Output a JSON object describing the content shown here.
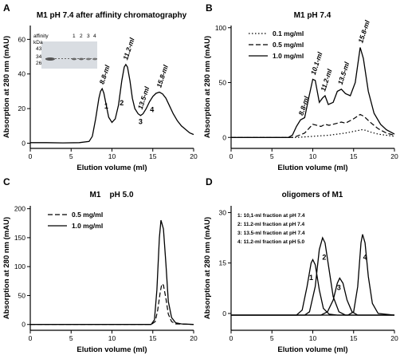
{
  "chart_data": [
    {
      "panel": "A",
      "type": "line",
      "title": "M1 pH 7.4 after affinity chromatography",
      "xlabel": "Elution volume (ml)",
      "ylabel": "Absorption at 280 nm (mAU)",
      "xlim": [
        0,
        20
      ],
      "ylim": [
        -3,
        68
      ],
      "xticks": [
        0,
        5,
        10,
        15,
        20
      ],
      "yticks": [
        0,
        20,
        40,
        60
      ],
      "series": [
        {
          "style": "solid",
          "points": [
            [
              0,
              0.3
            ],
            [
              2,
              0.3
            ],
            [
              4,
              0.2
            ],
            [
              6,
              0.3
            ],
            [
              7.2,
              1
            ],
            [
              7.6,
              4
            ],
            [
              8,
              14
            ],
            [
              8.4,
              26
            ],
            [
              8.6,
              30
            ],
            [
              8.8,
              31.5
            ],
            [
              9,
              29
            ],
            [
              9.3,
              22
            ],
            [
              9.6,
              15
            ],
            [
              10,
              12
            ],
            [
              10.4,
              14
            ],
            [
              10.8,
              22
            ],
            [
              11.2,
              36
            ],
            [
              11.5,
              44
            ],
            [
              11.7,
              45.5
            ],
            [
              11.9,
              44
            ],
            [
              12.2,
              36
            ],
            [
              12.5,
              26
            ],
            [
              12.8,
              20
            ],
            [
              13.2,
              17
            ],
            [
              13.5,
              16
            ],
            [
              13.8,
              17
            ],
            [
              14.2,
              20
            ],
            [
              14.6,
              24
            ],
            [
              15,
              27
            ],
            [
              15.4,
              28.8
            ],
            [
              15.8,
              29.5
            ],
            [
              16.2,
              28.5
            ],
            [
              16.6,
              26
            ],
            [
              17,
              22
            ],
            [
              17.5,
              17
            ],
            [
              18,
              13
            ],
            [
              18.5,
              10
            ],
            [
              19,
              8
            ],
            [
              19.5,
              6
            ],
            [
              20,
              5
            ]
          ]
        }
      ],
      "peak_labels": [
        {
          "label": "8.8-ml",
          "x": 8.8
        },
        {
          "label": "11.2-ml",
          "x": 11.7
        },
        {
          "label": "13.5-ml",
          "x": 13.5
        },
        {
          "label": "15.8-ml",
          "x": 15.8
        }
      ],
      "peak_numbers": [
        {
          "label": "1",
          "x": 9.3,
          "y": 20
        },
        {
          "label": "2",
          "x": 11.2,
          "y": 22
        },
        {
          "label": "3",
          "x": 13.5,
          "y": 11
        },
        {
          "label": "4",
          "x": 14.9,
          "y": 18
        }
      ],
      "inset": {
        "header": [
          "affinity",
          "1",
          "2",
          "3",
          "4"
        ],
        "unit": "kDa",
        "markers": [
          "43",
          "34",
          "26"
        ]
      }
    },
    {
      "panel": "B",
      "type": "line",
      "title": "M1   pH 7.4",
      "xlabel": "Elution volume (ml)",
      "ylabel": "Absorption at 280 nm (mAU)",
      "xlim": [
        0,
        20
      ],
      "ylim": [
        -10,
        102
      ],
      "xticks": [
        0,
        5,
        10,
        15,
        20
      ],
      "yticks": [
        0,
        50,
        100
      ],
      "legend_position": "top-left",
      "series": [
        {
          "name": "0.1 mg/ml",
          "style": "dotted",
          "points": [
            [
              0,
              0
            ],
            [
              8,
              0
            ],
            [
              9,
              0.5
            ],
            [
              10,
              1
            ],
            [
              11,
              1.5
            ],
            [
              12,
              2
            ],
            [
              13,
              3
            ],
            [
              14,
              4
            ],
            [
              15,
              5.5
            ],
            [
              16,
              7
            ],
            [
              16.5,
              6.5
            ],
            [
              17,
              5
            ],
            [
              18,
              3
            ],
            [
              19,
              2
            ],
            [
              20,
              1
            ]
          ]
        },
        {
          "name": "0.5 mg/ml",
          "style": "dashed",
          "points": [
            [
              0,
              0
            ],
            [
              7.5,
              0
            ],
            [
              8,
              1
            ],
            [
              9,
              4
            ],
            [
              10,
              12
            ],
            [
              10.5,
              11
            ],
            [
              11,
              10
            ],
            [
              11.5,
              12
            ],
            [
              12,
              11
            ],
            [
              13,
              13
            ],
            [
              13.5,
              14
            ],
            [
              14,
              13
            ],
            [
              15,
              17
            ],
            [
              15.8,
              21
            ],
            [
              16.3,
              19
            ],
            [
              17,
              14
            ],
            [
              18,
              8
            ],
            [
              19,
              4
            ],
            [
              20,
              2
            ]
          ]
        },
        {
          "name": "1.0 mg/ml",
          "style": "solid",
          "points": [
            [
              0,
              0
            ],
            [
              7,
              0
            ],
            [
              7.5,
              2
            ],
            [
              8,
              10
            ],
            [
              8.5,
              16
            ],
            [
              9,
              18
            ],
            [
              9.5,
              36
            ],
            [
              10,
              53
            ],
            [
              10.3,
              52
            ],
            [
              10.8,
              32
            ],
            [
              11.2,
              36
            ],
            [
              11.5,
              38
            ],
            [
              11.9,
              30
            ],
            [
              12.5,
              32
            ],
            [
              13,
              42
            ],
            [
              13.5,
              44
            ],
            [
              14,
              40
            ],
            [
              14.6,
              38
            ],
            [
              15.2,
              50
            ],
            [
              15.8,
              82
            ],
            [
              16.2,
              72
            ],
            [
              16.8,
              42
            ],
            [
              17.5,
              22
            ],
            [
              18.3,
              12
            ],
            [
              19,
              7
            ],
            [
              20,
              3
            ]
          ]
        }
      ],
      "peak_labels": [
        {
          "label": "8.8-ml",
          "x": 8.6
        },
        {
          "label": "10.1-ml",
          "x": 10.1
        },
        {
          "label": "11.2-ml",
          "x": 11.3
        },
        {
          "label": "13.5-ml",
          "x": 13.4
        },
        {
          "label": "15.8-ml",
          "x": 15.9
        }
      ]
    },
    {
      "panel": "C",
      "type": "line",
      "title": "M1    pH 5.0",
      "xlabel": "Elution volume (ml)",
      "ylabel": "Absorption at 280 nm (mAU)",
      "xlim": [
        0,
        20
      ],
      "ylim": [
        -10,
        205
      ],
      "xticks": [
        0,
        5,
        10,
        15,
        20
      ],
      "yticks": [
        0,
        50,
        100,
        150,
        200
      ],
      "legend_position": "top-left",
      "series": [
        {
          "name": "0.5 mg/ml",
          "style": "dashed",
          "points": [
            [
              0,
              0
            ],
            [
              14.8,
              0
            ],
            [
              15.3,
              5
            ],
            [
              15.6,
              25
            ],
            [
              15.9,
              55
            ],
            [
              16.1,
              70
            ],
            [
              16.3,
              68
            ],
            [
              16.6,
              45
            ],
            [
              16.9,
              18
            ],
            [
              17.3,
              5
            ],
            [
              17.8,
              1
            ],
            [
              20,
              0
            ]
          ]
        },
        {
          "name": "1.0 mg/ml",
          "style": "solid",
          "points": [
            [
              0,
              0
            ],
            [
              14.8,
              0
            ],
            [
              15.2,
              8
            ],
            [
              15.5,
              60
            ],
            [
              15.8,
              150
            ],
            [
              16,
              180
            ],
            [
              16.3,
              165
            ],
            [
              16.6,
              105
            ],
            [
              16.9,
              40
            ],
            [
              17.3,
              12
            ],
            [
              17.8,
              3
            ],
            [
              18.5,
              1
            ],
            [
              20,
              0
            ]
          ]
        }
      ]
    },
    {
      "panel": "D",
      "type": "line",
      "title": "oligomers of M1",
      "xlabel": "Elution volume (ml)",
      "ylabel": "Absorption at 280 nm (mAU)",
      "xlim": [
        0,
        20
      ],
      "ylim": [
        -5,
        32
      ],
      "xticks": [
        0,
        5,
        10,
        15,
        20
      ],
      "yticks": [
        0,
        15,
        30
      ],
      "legend_position": "top-left",
      "series": [
        {
          "name": "1: 10,1-ml fraction at pH 7.4",
          "style": "solid",
          "points": [
            [
              0,
              -0.5
            ],
            [
              8,
              -0.5
            ],
            [
              8.7,
              1
            ],
            [
              9.3,
              8
            ],
            [
              9.8,
              15
            ],
            [
              10,
              16
            ],
            [
              10.3,
              14.5
            ],
            [
              10.8,
              7
            ],
            [
              11.3,
              1.5
            ],
            [
              12,
              -0.2
            ],
            [
              13,
              -0.5
            ],
            [
              20,
              -0.5
            ]
          ]
        },
        {
          "name": "2: 11.2-ml fraction at pH 7.4",
          "style": "solid",
          "points": [
            [
              0,
              -0.5
            ],
            [
              9,
              -0.5
            ],
            [
              9.6,
              0.5
            ],
            [
              10.3,
              8
            ],
            [
              10.8,
              19
            ],
            [
              11.2,
              22.5
            ],
            [
              11.5,
              21
            ],
            [
              12,
              13
            ],
            [
              12.5,
              5
            ],
            [
              13.2,
              0.5
            ],
            [
              14,
              -0.5
            ],
            [
              20,
              -0.5
            ]
          ]
        },
        {
          "name": "3: 13.5-ml fraction at pH 7.4",
          "style": "solid",
          "points": [
            [
              0,
              -0.5
            ],
            [
              11,
              -0.5
            ],
            [
              11.8,
              0.5
            ],
            [
              12.5,
              4
            ],
            [
              13,
              9
            ],
            [
              13.3,
              10.5
            ],
            [
              13.7,
              9
            ],
            [
              14.2,
              4
            ],
            [
              14.8,
              0.5
            ],
            [
              15.5,
              -0.5
            ],
            [
              20,
              -0.5
            ]
          ]
        },
        {
          "name": "4: 11.2-ml fraction at pH 5.0",
          "style": "solid",
          "points": [
            [
              0,
              -0.5
            ],
            [
              14.3,
              -0.5
            ],
            [
              15,
              0.5
            ],
            [
              15.5,
              8
            ],
            [
              15.9,
              21
            ],
            [
              16.1,
              23.5
            ],
            [
              16.4,
              21
            ],
            [
              16.8,
              11
            ],
            [
              17.3,
              3
            ],
            [
              18,
              0
            ],
            [
              20,
              -0.5
            ]
          ]
        }
      ],
      "peak_numbers": [
        {
          "label": "1",
          "x": 9.8,
          "y": 10
        },
        {
          "label": "2",
          "x": 11.4,
          "y": 16
        },
        {
          "label": "3",
          "x": 13.2,
          "y": 7
        },
        {
          "label": "4",
          "x": 16.4,
          "y": 16
        }
      ]
    }
  ],
  "letters": [
    "A",
    "B",
    "C",
    "D"
  ]
}
